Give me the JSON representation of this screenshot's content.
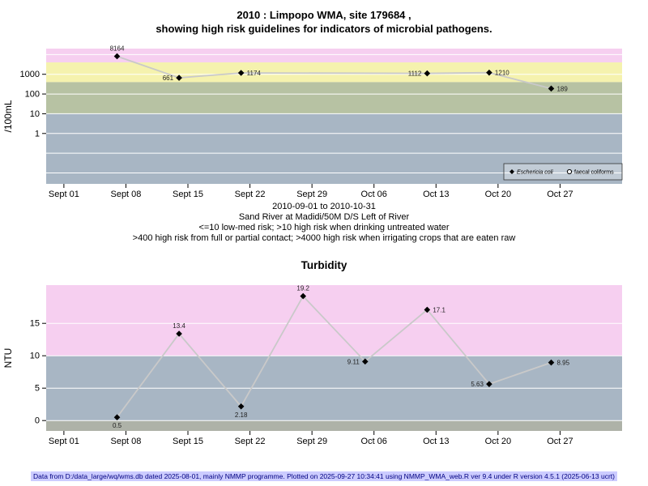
{
  "header": {
    "title_line1": "2010 : Limpopo WMA, site 179684 ,",
    "title_line2": "showing high risk guidelines for indicators of microbial pathogens."
  },
  "captions": {
    "date_range": "2010-09-01 to 2010-10-31",
    "site": "Sand River at Madidi/50M D/S Left of River",
    "guideline1": "<=10 low-med risk; >10 high risk when drinking untreated water",
    "guideline2": ">400 high risk from full or partial contact; >4000 high risk when irrigating crops that are eaten raw"
  },
  "turbidity_title": "Turbidity",
  "footer": {
    "text": "Data from D:/data_large/wq/wms.db dated 2025-08-01, mainly NMMP programme. Plotted on 2025-09-27 10:34:41 using NMMP_WMA_web.R ver 9.4 under R version 4.5.1 (2025-06-13 ucrt)",
    "highlight_color": "#CCCCFF"
  },
  "chart_data": [
    {
      "id": "ecoli",
      "type": "line",
      "yscale": "log",
      "ylabel": "/100mL",
      "ylim": [
        0.0028,
        20000
      ],
      "yticks": [
        1,
        10,
        100,
        1000
      ],
      "grid_values": [
        0.01,
        0.1,
        1,
        10,
        100,
        1000,
        10000
      ],
      "xlim_days": [
        -2,
        63
      ],
      "x_ticks": [
        {
          "day": 0,
          "label": "Sept 01"
        },
        {
          "day": 7,
          "label": "Sept 08"
        },
        {
          "day": 14,
          "label": "Sept 15"
        },
        {
          "day": 21,
          "label": "Sept 22"
        },
        {
          "day": 28,
          "label": "Sept 29"
        },
        {
          "day": 35,
          "label": "Oct 06"
        },
        {
          "day": 42,
          "label": "Oct 13"
        },
        {
          "day": 49,
          "label": "Oct 20"
        },
        {
          "day": 56,
          "label": "Oct 27"
        }
      ],
      "bands": [
        {
          "from": 4000,
          "to": null,
          "color": "#F6CFF0"
        },
        {
          "from": 400,
          "to": 4000,
          "color": "#F5F2AE"
        },
        {
          "from": 10,
          "to": 400,
          "color": "#B7C2A3"
        },
        {
          "from": null,
          "to": 10,
          "color": "#A8B6C4"
        }
      ],
      "line_color": "#C9C9C9",
      "marker_color": "#000000",
      "grid_color": "#FFFFFF",
      "label_color": "#222222",
      "series": [
        {
          "name": "Eschericia coli",
          "marker": "diamond",
          "points": [
            {
              "day": 6,
              "value": 8164,
              "label": "8164",
              "label_pos": "above"
            },
            {
              "day": 13,
              "value": 661,
              "label": "661",
              "label_pos": "left"
            },
            {
              "day": 20,
              "value": 1174,
              "label": "1174",
              "label_pos": "right"
            },
            {
              "day": 41,
              "value": 1112,
              "label": "1112",
              "label_pos": "left"
            },
            {
              "day": 48,
              "value": 1210,
              "label": "1210",
              "label_pos": "right"
            },
            {
              "day": 55,
              "value": 189,
              "label": "189",
              "label_pos": "right"
            }
          ]
        }
      ],
      "legend": {
        "items": [
          {
            "label": "Eschericia coli",
            "marker": "diamond",
            "italic": true
          },
          {
            "label": "faecal coliforms",
            "marker": "circle",
            "italic": false
          }
        ]
      }
    },
    {
      "id": "turbidity",
      "type": "line",
      "yscale": "linear",
      "ylabel": "NTU",
      "ylim": [
        -1.6,
        20.9
      ],
      "yticks": [
        0,
        5,
        10,
        15
      ],
      "grid_values": [
        0,
        5,
        10,
        15
      ],
      "xlim_days": [
        -2,
        63
      ],
      "x_ticks": [
        {
          "day": 0,
          "label": "Sept 01"
        },
        {
          "day": 7,
          "label": "Sept 08"
        },
        {
          "day": 14,
          "label": "Sept 15"
        },
        {
          "day": 21,
          "label": "Sept 22"
        },
        {
          "day": 28,
          "label": "Sept 29"
        },
        {
          "day": 35,
          "label": "Oct 06"
        },
        {
          "day": 42,
          "label": "Oct 13"
        },
        {
          "day": 49,
          "label": "Oct 20"
        },
        {
          "day": 56,
          "label": "Oct 27"
        }
      ],
      "bands": [
        {
          "from": 10,
          "to": null,
          "color": "#F6CFF0"
        },
        {
          "from": 0,
          "to": 10,
          "color": "#A8B6C4"
        },
        {
          "from": null,
          "to": 0,
          "color": "#AEB2A8"
        }
      ],
      "line_color": "#C9C9C9",
      "marker_color": "#000000",
      "grid_color": "#FFFFFF",
      "label_color": "#222222",
      "series": [
        {
          "name": "Turbidity",
          "marker": "diamond",
          "points": [
            {
              "day": 6,
              "value": 0.5,
              "label": "0.5",
              "label_pos": "below"
            },
            {
              "day": 13,
              "value": 13.4,
              "label": "13.4",
              "label_pos": "above"
            },
            {
              "day": 20,
              "value": 2.18,
              "label": "2.18",
              "label_pos": "below"
            },
            {
              "day": 27,
              "value": 19.2,
              "label": "19.2",
              "label_pos": "above"
            },
            {
              "day": 34,
              "value": 9.11,
              "label": "9.11",
              "label_pos": "left"
            },
            {
              "day": 41,
              "value": 17.1,
              "label": "17.1",
              "label_pos": "right"
            },
            {
              "day": 48,
              "value": 5.63,
              "label": "5.63",
              "label_pos": "left"
            },
            {
              "day": 55,
              "value": 8.95,
              "label": "8.95",
              "label_pos": "right"
            }
          ]
        }
      ]
    }
  ]
}
